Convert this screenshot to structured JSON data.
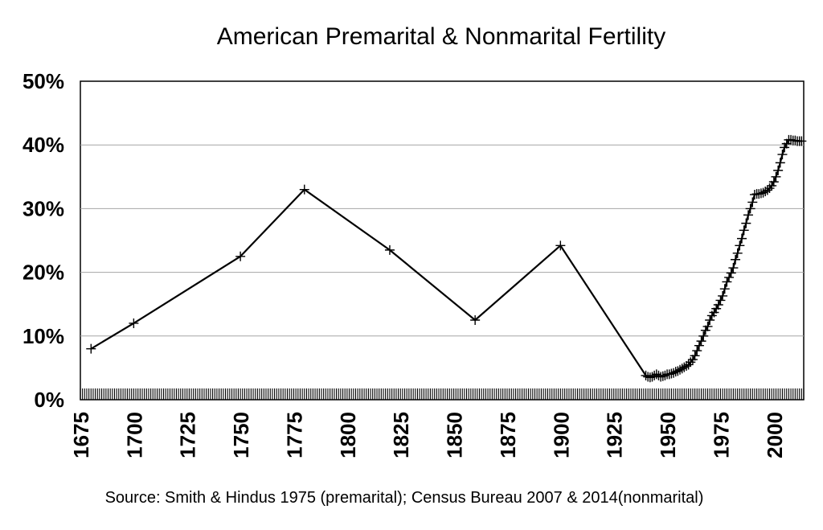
{
  "chart_data": {
    "type": "line",
    "title": "American Premarital & Nonmarital Fertility",
    "source": "Source: Smith & Hindus 1975 (premarital); Census Bureau 2007 & 2014(nonmarital)",
    "xlim": [
      1675,
      2014
    ],
    "ylim": [
      0,
      50
    ],
    "grid": true,
    "x_ticks": [
      1675,
      1700,
      1725,
      1750,
      1775,
      1800,
      1825,
      1850,
      1875,
      1900,
      1925,
      1950,
      1975,
      2000
    ],
    "x_tick_labels": [
      "1675",
      "1700",
      "1725",
      "1750",
      "1775",
      "1800",
      "1825",
      "1850",
      "1875",
      "1900",
      "1925",
      "1950",
      "1975",
      "2000"
    ],
    "y_ticks": [
      0,
      10,
      20,
      30,
      40,
      50
    ],
    "y_tick_labels": [
      "0%",
      "10%",
      "20%",
      "30%",
      "40%",
      "50%"
    ],
    "series": [
      {
        "x": [
          1680,
          1700,
          1750,
          1780,
          1820,
          1860,
          1900,
          1940,
          1941,
          1942,
          1943,
          1944,
          1945,
          1946,
          1947,
          1948,
          1949,
          1950,
          1951,
          1952,
          1953,
          1954,
          1955,
          1956,
          1957,
          1958,
          1959,
          1960,
          1961,
          1962,
          1963,
          1964,
          1965,
          1966,
          1967,
          1968,
          1969,
          1970,
          1971,
          1972,
          1973,
          1974,
          1975,
          1976,
          1977,
          1978,
          1979,
          1980,
          1981,
          1982,
          1983,
          1984,
          1985,
          1986,
          1987,
          1988,
          1989,
          1990,
          1991,
          1992,
          1993,
          1994,
          1995,
          1996,
          1997,
          1998,
          1999,
          2000,
          2001,
          2002,
          2003,
          2004,
          2005,
          2006,
          2007,
          2008,
          2009,
          2010,
          2011,
          2012,
          2013
        ],
        "values": [
          8.0,
          12.0,
          22.5,
          33.0,
          23.5,
          12.5,
          24.2,
          3.8,
          3.6,
          3.5,
          3.6,
          3.8,
          4.0,
          3.8,
          3.6,
          3.7,
          3.8,
          4.0,
          4.0,
          4.1,
          4.2,
          4.4,
          4.5,
          4.7,
          4.9,
          5.1,
          5.3,
          5.5,
          5.9,
          6.3,
          6.9,
          7.7,
          8.5,
          9.2,
          10.0,
          10.9,
          11.5,
          12.5,
          13.2,
          13.7,
          14.3,
          14.9,
          15.6,
          16.3,
          17.4,
          18.5,
          19.2,
          19.9,
          20.7,
          22.0,
          23.0,
          24.2,
          25.3,
          26.6,
          27.7,
          29.0,
          30.0,
          31.0,
          32.2,
          32.3,
          32.3,
          32.4,
          32.5,
          32.7,
          32.9,
          33.2,
          33.6,
          34.2,
          35.0,
          36.0,
          37.2,
          38.5,
          39.6,
          40.2,
          40.8,
          40.8,
          40.7,
          40.7,
          40.6,
          40.6,
          40.6
        ]
      }
    ]
  }
}
